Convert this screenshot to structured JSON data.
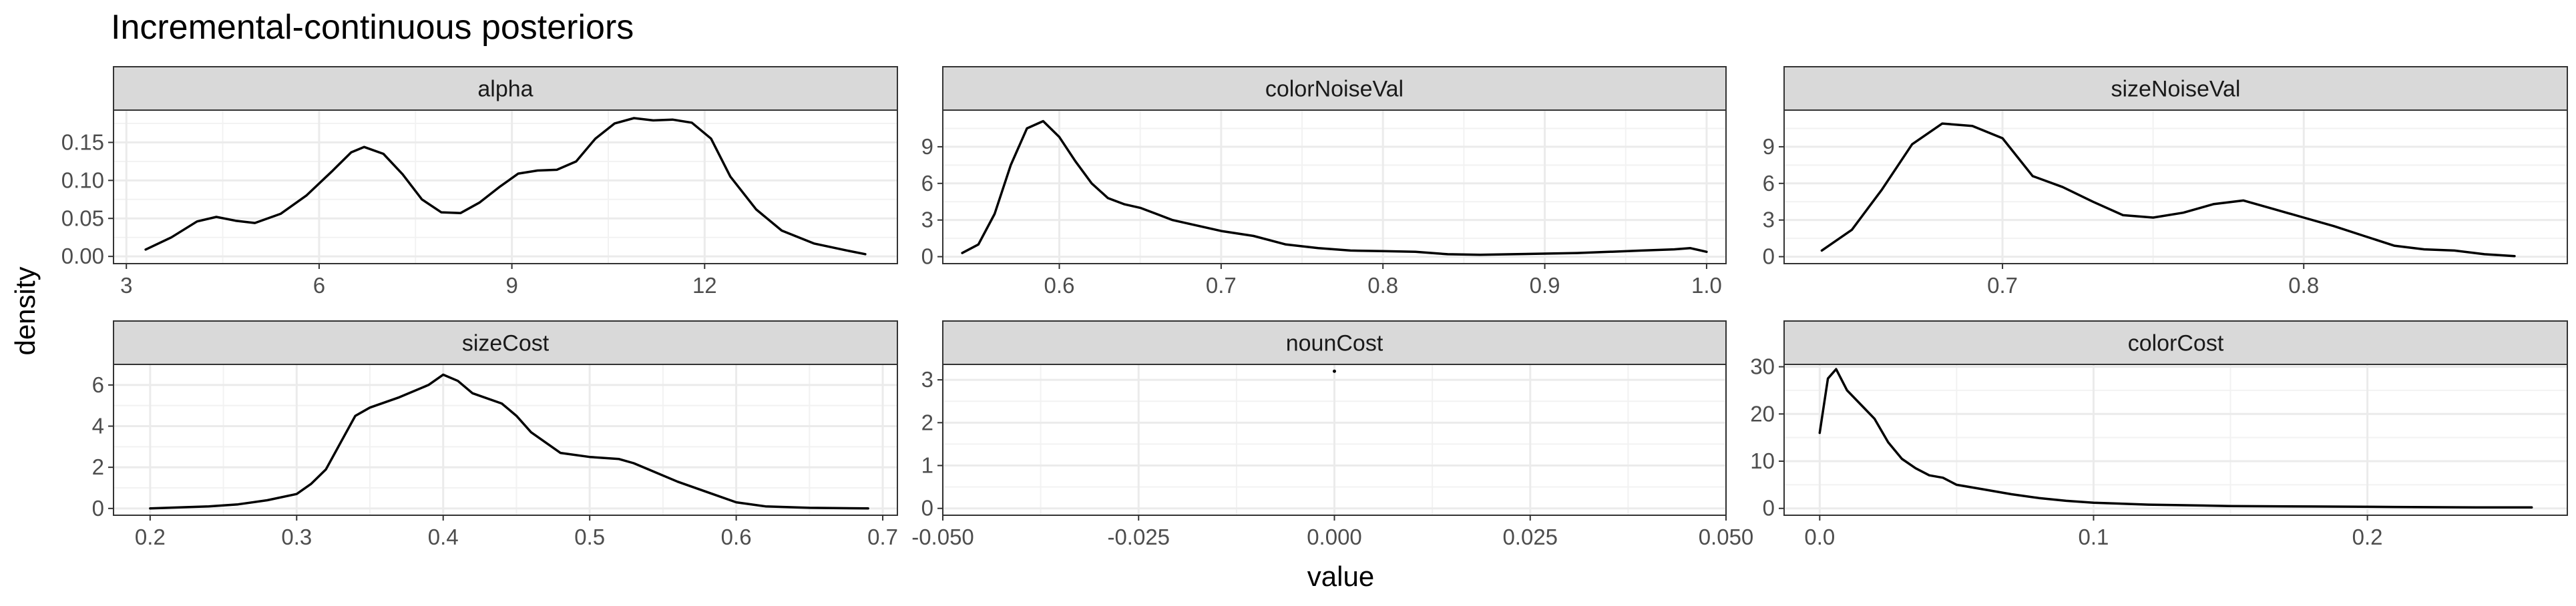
{
  "chart_data": {
    "type": "area",
    "title": "Incremental-continuous posteriors",
    "xlabel": "value",
    "ylabel": "density",
    "facet_layout": "2 rows x 3 columns, free scales",
    "grid": true,
    "line_color": "#000000",
    "strip_color": "#d9d9d9",
    "panels": [
      {
        "name": "alpha",
        "xlim": [
          2.8,
          15.0
        ],
        "ylim": [
          -0.0095,
          0.1925
        ],
        "xticks": [
          "3",
          "6",
          "9",
          "12"
        ],
        "xtick_values": [
          3,
          6,
          9,
          12
        ],
        "yticks": [
          "0.00",
          "0.05",
          "0.10",
          "0.15"
        ],
        "ytick_values": [
          0,
          0.05,
          0.1,
          0.15
        ],
        "x": [
          3.3,
          3.7,
          4.1,
          4.4,
          4.7,
          5.0,
          5.4,
          5.8,
          6.2,
          6.5,
          6.7,
          7.0,
          7.3,
          7.6,
          7.9,
          8.2,
          8.5,
          8.8,
          9.1,
          9.4,
          9.7,
          10.0,
          10.3,
          10.6,
          10.9,
          11.2,
          11.5,
          11.8,
          12.1,
          12.4,
          12.8,
          13.2,
          13.7,
          14.2,
          14.5
        ],
        "y": [
          0.009,
          0.025,
          0.046,
          0.052,
          0.047,
          0.044,
          0.056,
          0.08,
          0.112,
          0.137,
          0.144,
          0.135,
          0.108,
          0.075,
          0.058,
          0.057,
          0.071,
          0.091,
          0.109,
          0.113,
          0.114,
          0.125,
          0.155,
          0.175,
          0.182,
          0.179,
          0.18,
          0.176,
          0.155,
          0.105,
          0.062,
          0.034,
          0.017,
          0.008,
          0.003
        ]
      },
      {
        "name": "colorNoiseVal",
        "xlim": [
          0.528,
          1.012
        ],
        "ylim": [
          -0.57,
          12.0
        ],
        "xticks": [
          "0.6",
          "0.7",
          "0.8",
          "0.9",
          "1.0"
        ],
        "xtick_values": [
          0.6,
          0.7,
          0.8,
          0.9,
          1.0
        ],
        "yticks": [
          "0",
          "3",
          "6",
          "9"
        ],
        "ytick_values": [
          0,
          3,
          6,
          9
        ],
        "x": [
          0.54,
          0.55,
          0.56,
          0.57,
          0.58,
          0.59,
          0.6,
          0.61,
          0.62,
          0.63,
          0.64,
          0.65,
          0.66,
          0.67,
          0.68,
          0.7,
          0.72,
          0.74,
          0.76,
          0.78,
          0.8,
          0.82,
          0.84,
          0.86,
          0.88,
          0.9,
          0.92,
          0.94,
          0.96,
          0.98,
          0.99,
          1.0
        ],
        "y": [
          0.3,
          1.0,
          3.5,
          7.5,
          10.5,
          11.1,
          9.8,
          7.8,
          6.0,
          4.8,
          4.3,
          4.0,
          3.5,
          3.0,
          2.7,
          2.1,
          1.7,
          1.0,
          0.7,
          0.5,
          0.45,
          0.4,
          0.2,
          0.15,
          0.2,
          0.25,
          0.3,
          0.4,
          0.5,
          0.6,
          0.7,
          0.4
        ]
      },
      {
        "name": "sizeNoiseVal",
        "xlim": [
          0.6275,
          0.8875
        ],
        "ylim": [
          -0.57,
          12.0
        ],
        "xticks": [
          "0.7",
          "0.8"
        ],
        "xtick_values": [
          0.7,
          0.8
        ],
        "yticks": [
          "0",
          "3",
          "6",
          "9"
        ],
        "ytick_values": [
          0,
          3,
          6,
          9
        ],
        "x": [
          0.64,
          0.65,
          0.66,
          0.67,
          0.68,
          0.69,
          0.7,
          0.71,
          0.72,
          0.73,
          0.74,
          0.75,
          0.76,
          0.77,
          0.78,
          0.79,
          0.8,
          0.81,
          0.82,
          0.83,
          0.84,
          0.85,
          0.86,
          0.87
        ],
        "y": [
          0.5,
          2.2,
          5.5,
          9.2,
          10.9,
          10.7,
          9.7,
          6.6,
          5.7,
          4.5,
          3.4,
          3.2,
          3.6,
          4.3,
          4.6,
          3.9,
          3.2,
          2.5,
          1.7,
          0.9,
          0.6,
          0.5,
          0.2,
          0.05
        ]
      },
      {
        "name": "sizeCost",
        "xlim": [
          0.175,
          0.71
        ],
        "ylim": [
          -0.33,
          7.0
        ],
        "xticks": [
          "0.2",
          "0.3",
          "0.4",
          "0.5",
          "0.6",
          "0.7"
        ],
        "xtick_values": [
          0.2,
          0.3,
          0.4,
          0.5,
          0.6,
          0.7
        ],
        "yticks": [
          "0",
          "2",
          "4",
          "6"
        ],
        "ytick_values": [
          0,
          2,
          4,
          6
        ],
        "x": [
          0.2,
          0.22,
          0.24,
          0.26,
          0.28,
          0.3,
          0.31,
          0.32,
          0.33,
          0.34,
          0.35,
          0.37,
          0.39,
          0.4,
          0.41,
          0.42,
          0.44,
          0.45,
          0.46,
          0.48,
          0.5,
          0.52,
          0.53,
          0.54,
          0.56,
          0.58,
          0.6,
          0.62,
          0.65,
          0.69
        ],
        "y": [
          0.0,
          0.05,
          0.1,
          0.2,
          0.4,
          0.7,
          1.2,
          1.9,
          3.2,
          4.5,
          4.9,
          5.4,
          6.0,
          6.5,
          6.2,
          5.6,
          5.1,
          4.5,
          3.7,
          2.7,
          2.5,
          2.4,
          2.2,
          1.9,
          1.3,
          0.8,
          0.3,
          0.1,
          0.03,
          0.0
        ]
      },
      {
        "name": "nounCost",
        "xlim": [
          -0.05,
          0.05
        ],
        "ylim": [
          -0.16,
          3.36
        ],
        "xticks": [
          "-0.050",
          "-0.025",
          "0.000",
          "0.025",
          "0.050"
        ],
        "xtick_values": [
          -0.05,
          -0.025,
          0,
          0.025,
          0.05
        ],
        "yticks": [
          "0",
          "1",
          "2",
          "3"
        ],
        "ytick_values": [
          0,
          1,
          2,
          3
        ],
        "x": [
          0
        ],
        "y": [
          3.2
        ]
      },
      {
        "name": "colorCost",
        "xlim": [
          -0.013,
          0.273
        ],
        "ylim": [
          -1.45,
          30.5
        ],
        "xticks": [
          "0.0",
          "0.1",
          "0.2"
        ],
        "xtick_values": [
          0.0,
          0.1,
          0.2
        ],
        "yticks": [
          "0",
          "10",
          "20",
          "30"
        ],
        "ytick_values": [
          0,
          10,
          20,
          30
        ],
        "x": [
          0.0,
          0.003,
          0.006,
          0.01,
          0.015,
          0.02,
          0.025,
          0.03,
          0.035,
          0.04,
          0.045,
          0.05,
          0.06,
          0.07,
          0.08,
          0.09,
          0.1,
          0.12,
          0.15,
          0.18,
          0.21,
          0.24,
          0.26
        ],
        "y": [
          16.0,
          27.5,
          29.5,
          25.0,
          22.0,
          19.0,
          14.0,
          10.5,
          8.5,
          7.0,
          6.5,
          5.0,
          4.0,
          3.0,
          2.2,
          1.6,
          1.2,
          0.8,
          0.5,
          0.4,
          0.3,
          0.2,
          0.2
        ]
      }
    ]
  }
}
